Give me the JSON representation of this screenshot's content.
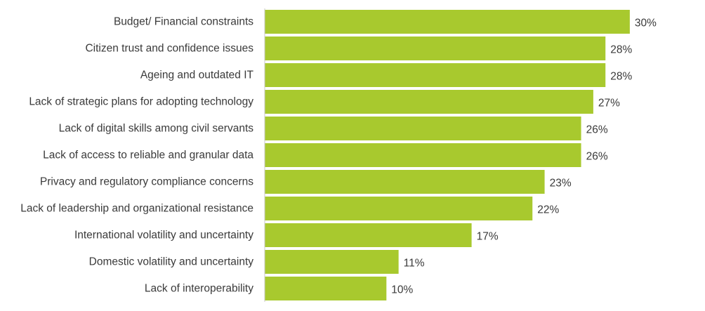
{
  "chart_data": {
    "type": "bar",
    "orientation": "horizontal",
    "categories": [
      "Budget/ Financial constraints",
      "Citizen trust and confidence issues",
      "Ageing and outdated IT",
      "Lack of strategic plans for adopting technology",
      "Lack of digital skills among civil servants",
      "Lack of access to reliable and granular data",
      "Privacy and regulatory compliance concerns",
      "Lack of leadership and organizational resistance",
      "International volatility and uncertainty",
      "Domestic volatility and uncertainty",
      "Lack of interoperability"
    ],
    "values": [
      30,
      28,
      28,
      27,
      26,
      26,
      23,
      22,
      17,
      11,
      10
    ],
    "value_labels": [
      "30%",
      "28%",
      "28%",
      "27%",
      "26%",
      "26%",
      "23%",
      "22%",
      "17%",
      "11%",
      "10%"
    ],
    "unit": "%",
    "bar_color": "#a8c92e",
    "axis_color": "#c8c8c8",
    "grid": false,
    "legend": "none"
  }
}
